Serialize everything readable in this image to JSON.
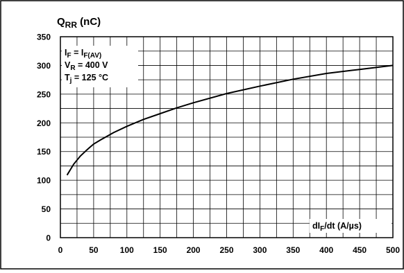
{
  "chart_data": {
    "type": "line",
    "title": {
      "main": "Q",
      "sub": "RR",
      "unit": " (nC)"
    },
    "xlabel": {
      "a": "dI",
      "sub": "F",
      "b": "/dt (A/µs)"
    },
    "conditions": [
      {
        "a": "I",
        "s1": "F",
        "b": " = I",
        "s2": "F(AV)",
        "c": ""
      },
      {
        "a": "V",
        "s1": "R",
        "b": " = 400 V",
        "s2": "",
        "c": ""
      },
      {
        "a": "T",
        "s1": "j",
        "b": " = 125 °C",
        "s2": "",
        "c": ""
      }
    ],
    "xlim": [
      0,
      500
    ],
    "ylim": [
      0,
      350
    ],
    "x_ticks": [
      "0",
      "50",
      "100",
      "150",
      "200",
      "250",
      "300",
      "350",
      "400",
      "450",
      "500"
    ],
    "y_ticks": [
      "0",
      "50",
      "100",
      "150",
      "200",
      "250",
      "300",
      "350"
    ],
    "grid": true,
    "series": [
      {
        "x": [
          10,
          20,
          30,
          40,
          50,
          60,
          80,
          100,
          125,
          150,
          175,
          200,
          250,
          300,
          350,
          400,
          450,
          500
        ],
        "y": [
          109,
          128,
          142,
          153,
          163,
          170,
          183,
          194,
          206,
          216,
          226,
          235,
          251,
          264,
          276,
          286,
          293,
          300
        ]
      }
    ]
  }
}
